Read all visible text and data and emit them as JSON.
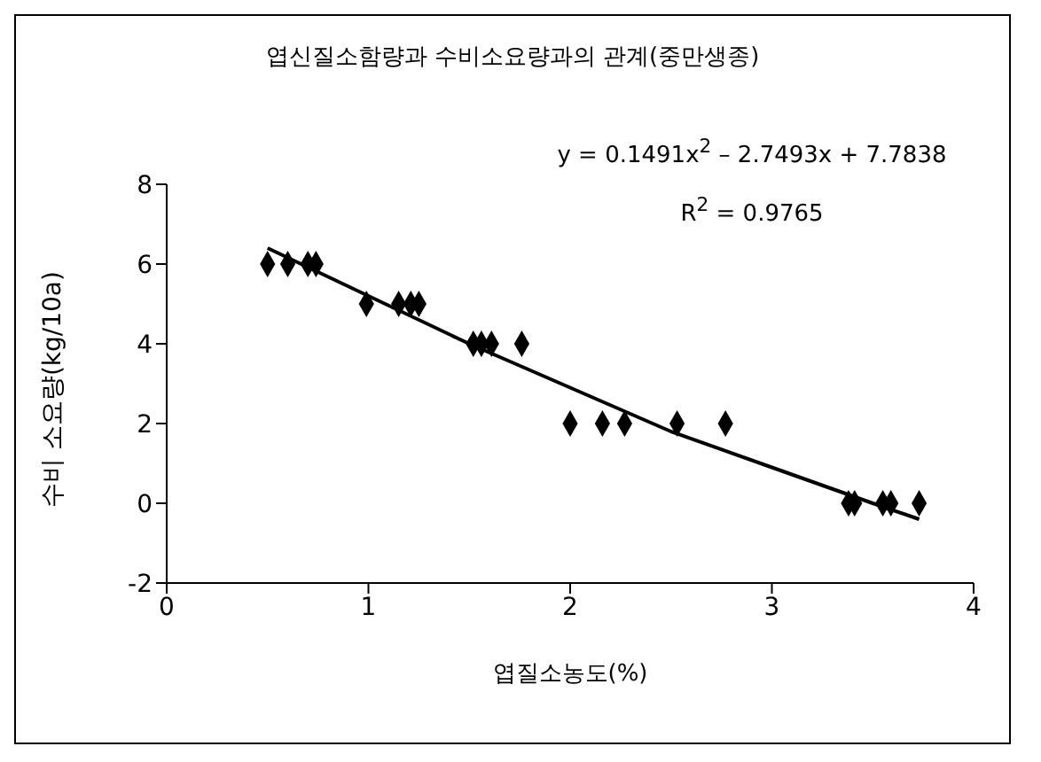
{
  "chart_data": {
    "type": "scatter",
    "title": "엽신질소함량과 수비소요량과의 관계(중만생종)",
    "xlabel": "엽질소농도(%)",
    "ylabel": "수비 소요량(kg/10a)",
    "annotations": [
      "y = 0.1491x$^{2}$ – 2.7493x + 7.7838",
      "R$^{2}$ = 0.9765"
    ],
    "series": [
      {
        "color": "#000000",
        "marker": "diamond",
        "x": [
          0.5,
          0.6,
          0.7,
          0.74,
          0.99,
          1.15,
          1.21,
          1.25,
          1.52,
          1.56,
          1.61,
          1.76,
          2.0,
          2.16,
          2.27,
          2.53,
          2.77,
          3.38,
          3.41,
          3.55,
          3.59,
          3.73
        ],
        "values": [
          6,
          6,
          6,
          6,
          5,
          5,
          5,
          5,
          4,
          4,
          4,
          4,
          2,
          2,
          2,
          2,
          2,
          0,
          0,
          0,
          0,
          0
        ]
      },
      {
        "type": "line",
        "color": "#000000",
        "marker": "none",
        "x": [
          0.5,
          1.0,
          1.5,
          2.0,
          2.5,
          3.0,
          3.5,
          3.73
        ],
        "values": [
          6.4,
          5.2,
          4.0,
          2.9,
          1.8,
          0.9,
          0.0,
          -0.4
        ]
      }
    ],
    "xlim": [
      0,
      4
    ],
    "xticks": [
      0,
      1,
      2,
      3,
      4
    ],
    "ylim": [
      -2,
      8
    ],
    "yticks": [
      -2,
      0,
      2,
      4,
      6,
      8
    ],
    "grid": false
  }
}
